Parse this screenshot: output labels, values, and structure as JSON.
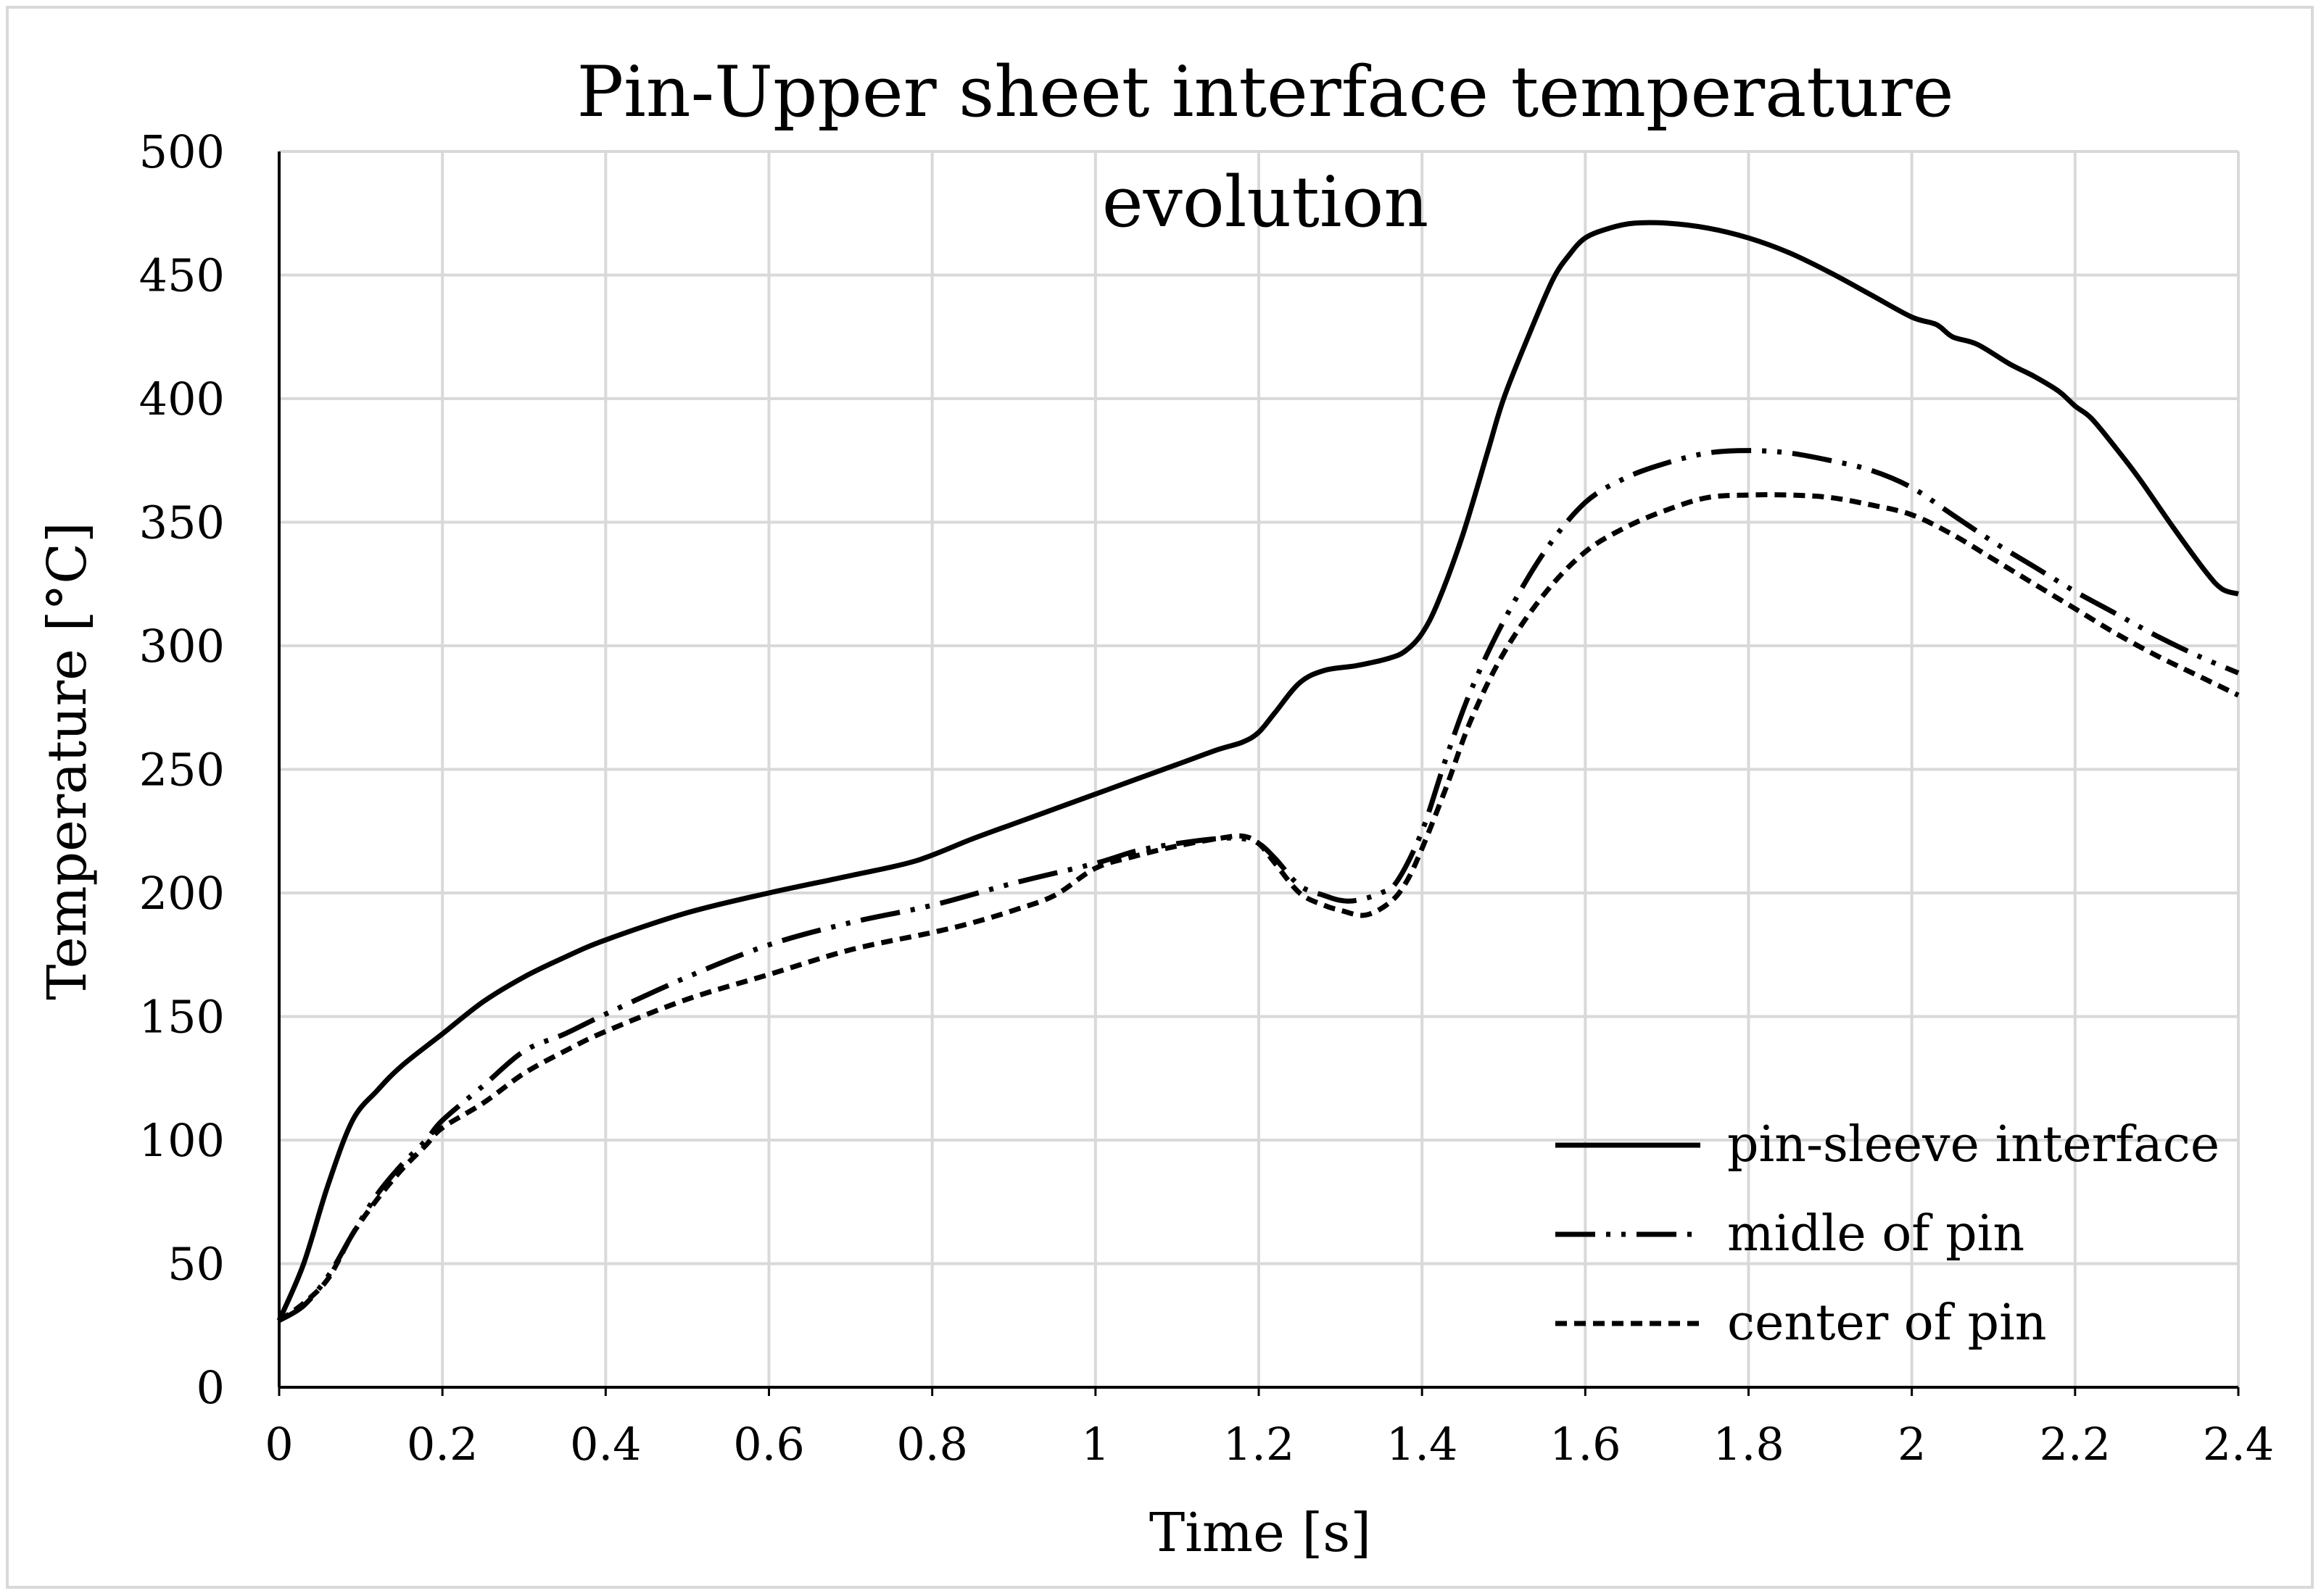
{
  "chart_data": {
    "type": "line",
    "title_lines": [
      "Pin-Upper sheet interface temperature",
      "evolution"
    ],
    "xlabel": "Time [s]",
    "ylabel": "Temperature [°C]",
    "xlim": [
      0,
      2.4
    ],
    "ylim": [
      0,
      500
    ],
    "xticks": [
      0,
      0.2,
      0.4,
      0.6,
      0.8,
      1,
      1.2,
      1.4,
      1.6,
      1.8,
      2,
      2.2,
      2.4
    ],
    "yticks": [
      0,
      50,
      100,
      150,
      200,
      250,
      300,
      350,
      400,
      450,
      500
    ],
    "grid": true,
    "legend_position": "bottom-right",
    "series": [
      {
        "name": "pin-sleeve interface",
        "style": "solid",
        "color": "#000000",
        "x": [
          0,
          0.03,
          0.06,
          0.09,
          0.12,
          0.15,
          0.2,
          0.25,
          0.3,
          0.35,
          0.4,
          0.5,
          0.6,
          0.7,
          0.78,
          0.85,
          0.9,
          0.95,
          1.0,
          1.05,
          1.1,
          1.15,
          1.18,
          1.2,
          1.22,
          1.25,
          1.28,
          1.32,
          1.36,
          1.38,
          1.4,
          1.42,
          1.45,
          1.48,
          1.5,
          1.53,
          1.56,
          1.58,
          1.6,
          1.63,
          1.66,
          1.7,
          1.75,
          1.8,
          1.85,
          1.9,
          1.95,
          2.0,
          2.03,
          2.05,
          2.08,
          2.12,
          2.15,
          2.18,
          2.2,
          2.22,
          2.25,
          2.28,
          2.32,
          2.36,
          2.38,
          2.4
        ],
        "y": [
          27,
          50,
          82,
          108,
          120,
          130,
          143,
          156,
          166,
          174,
          181,
          192,
          200,
          207,
          213,
          222,
          228,
          234,
          240,
          246,
          252,
          258,
          261,
          265,
          273,
          285,
          290,
          292,
          295,
          298,
          305,
          318,
          345,
          378,
          400,
          425,
          448,
          458,
          465,
          469,
          471,
          471,
          469,
          465,
          459,
          451,
          442,
          433,
          430,
          425,
          422,
          414,
          409,
          403,
          397,
          392,
          380,
          367,
          348,
          330,
          323,
          321
        ]
      },
      {
        "name": "midle of pin",
        "style": "dash-dot-dot",
        "color": "#000000",
        "x": [
          0,
          0.03,
          0.06,
          0.09,
          0.12,
          0.15,
          0.18,
          0.2,
          0.25,
          0.3,
          0.35,
          0.4,
          0.5,
          0.6,
          0.7,
          0.8,
          0.9,
          1.0,
          1.05,
          1.1,
          1.15,
          1.18,
          1.2,
          1.22,
          1.25,
          1.28,
          1.3,
          1.32,
          1.35,
          1.37,
          1.4,
          1.43,
          1.46,
          1.5,
          1.55,
          1.6,
          1.65,
          1.7,
          1.75,
          1.8,
          1.85,
          1.9,
          1.95,
          2.0,
          2.05,
          2.1,
          2.15,
          2.2,
          2.25,
          2.3,
          2.35,
          2.4
        ],
        "y": [
          27,
          33,
          45,
          62,
          78,
          90,
          100,
          108,
          122,
          136,
          143,
          151,
          166,
          179,
          188,
          195,
          204,
          212,
          217,
          220,
          222,
          222,
          220,
          214,
          203,
          199,
          197,
          197,
          200,
          205,
          225,
          255,
          282,
          310,
          338,
          358,
          368,
          374,
          378,
          379,
          378,
          375,
          371,
          364,
          353,
          342,
          332,
          322,
          313,
          304,
          296,
          289
        ]
      },
      {
        "name": "center of pin",
        "style": "dashed",
        "color": "#000000",
        "x": [
          0,
          0.03,
          0.06,
          0.09,
          0.12,
          0.15,
          0.18,
          0.2,
          0.25,
          0.3,
          0.35,
          0.4,
          0.5,
          0.6,
          0.7,
          0.8,
          0.85,
          0.9,
          0.95,
          1.0,
          1.05,
          1.1,
          1.15,
          1.18,
          1.2,
          1.22,
          1.25,
          1.28,
          1.3,
          1.33,
          1.36,
          1.38,
          1.4,
          1.43,
          1.46,
          1.5,
          1.55,
          1.6,
          1.65,
          1.7,
          1.75,
          1.8,
          1.85,
          1.9,
          1.95,
          2.0,
          2.05,
          2.1,
          2.15,
          2.2,
          2.25,
          2.3,
          2.35,
          2.4
        ],
        "y": [
          27,
          34,
          44,
          62,
          76,
          88,
          98,
          105,
          115,
          127,
          136,
          144,
          157,
          167,
          177,
          184,
          188,
          193,
          199,
          210,
          215,
          219,
          222,
          223,
          220,
          212,
          200,
          195,
          193,
          191,
          196,
          204,
          218,
          243,
          270,
          297,
          321,
          338,
          348,
          355,
          360,
          361,
          361,
          360,
          357,
          353,
          345,
          335,
          325,
          315,
          305,
          296,
          288,
          280
        ]
      }
    ]
  }
}
